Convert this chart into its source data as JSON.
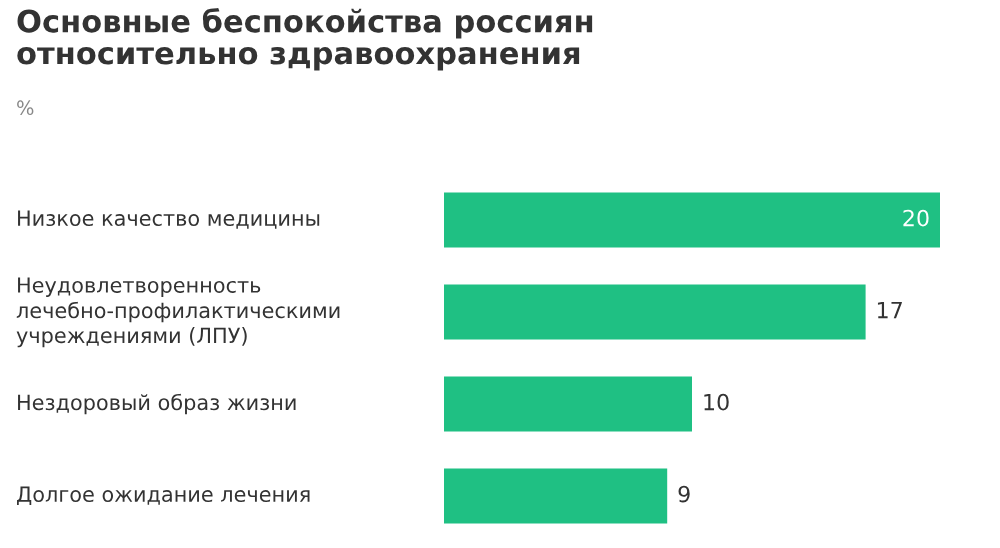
{
  "chart_data": {
    "type": "bar",
    "orientation": "horizontal",
    "title": "Основные беспокойства россиян\nотносительно здравоохранения",
    "subtitle": "%",
    "categories": [
      "Низкое качество медицины",
      "Неудовлетворенность\nлечебно-профилактическими\nучреждениями (ЛПУ)",
      "Нездоровый образ жизни",
      "Долгое ожидание лечения"
    ],
    "values": [
      20,
      17,
      10,
      9
    ],
    "color": "#1fc083",
    "data_labels": true
  }
}
